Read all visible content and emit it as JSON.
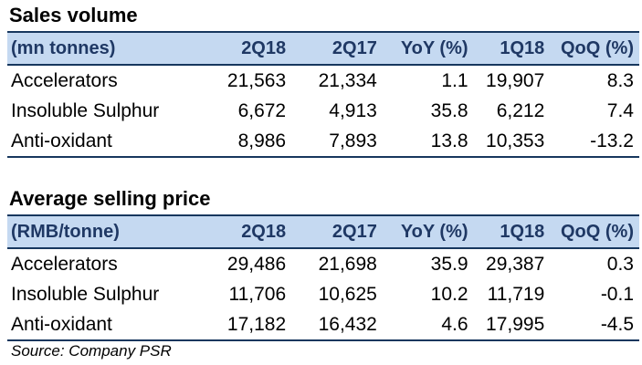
{
  "sections": [
    {
      "title": "Sales volume",
      "headers": [
        "(mn tonnes)",
        "2Q18",
        "2Q17",
        "YoY (%)",
        "1Q18",
        "QoQ (%)"
      ],
      "rows": [
        [
          "Accelerators",
          "21,563",
          "21,334",
          "1.1",
          "19,907",
          "8.3"
        ],
        [
          "Insoluble Sulphur",
          "6,672",
          "4,913",
          "35.8",
          "6,212",
          "7.4"
        ],
        [
          "Anti-oxidant",
          "8,986",
          "7,893",
          "13.8",
          "10,353",
          "-13.2"
        ]
      ]
    },
    {
      "title": "Average selling price",
      "headers": [
        "(RMB/tonne)",
        "2Q18",
        "2Q17",
        "YoY (%)",
        "1Q18",
        "QoQ (%)"
      ],
      "rows": [
        [
          "Accelerators",
          "29,486",
          "21,698",
          "35.9",
          "29,387",
          "0.3"
        ],
        [
          "Insoluble Sulphur",
          "11,706",
          "10,625",
          "10.2",
          "11,719",
          "-0.1"
        ],
        [
          "Anti-oxidant",
          "17,182",
          "16,432",
          "4.6",
          "17,995",
          "-4.5"
        ]
      ]
    }
  ],
  "source": "Source: Company PSR"
}
